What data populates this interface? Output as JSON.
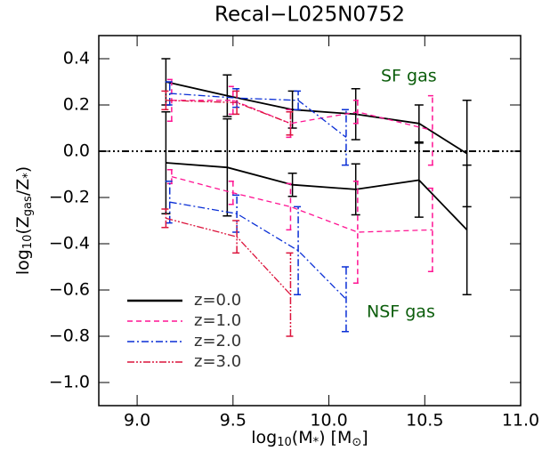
{
  "chart_data": {
    "type": "line",
    "title": "Recal−L025N0752",
    "x_label": [
      "log",
      "10",
      "(M",
      "*",
      ") [M",
      "⊙",
      "]"
    ],
    "y_label": [
      "log",
      "10",
      "(Z",
      "gas",
      "/Z",
      "*",
      ")"
    ],
    "annotations": [
      "SF gas",
      "NSF gas"
    ],
    "xlim": [
      8.8,
      11.0
    ],
    "ylim": [
      -1.1,
      0.5
    ],
    "xticks": [
      {
        "value": 9,
        "label": "9.0"
      },
      9.5,
      {
        "value": 10,
        "label": "10.0"
      },
      10.5,
      {
        "value": 11,
        "label": "11.0"
      }
    ],
    "yticks": [
      {
        "value": -1,
        "label": "−1.0"
      },
      {
        "value": -0.8,
        "label": "−0.8"
      },
      {
        "value": -0.6,
        "label": "−0.6"
      },
      {
        "value": -0.4,
        "label": "−0.4"
      },
      {
        "value": -0.2,
        "label": "−0.2"
      },
      {
        "value": 0,
        "label": "0.0"
      },
      0.2,
      0.4
    ],
    "reference_line": 0,
    "series": [
      {
        "name": "z=0.0",
        "color": "#000000",
        "dash": "none",
        "x": [
          9.15,
          9.47,
          9.81,
          10.14,
          10.47,
          10.72
        ],
        "sf": [
          0.3,
          0.24,
          0.18,
          0.16,
          0.12,
          -0.01
        ],
        "sf_err": [
          0.1,
          0.09,
          0.08,
          0.11,
          0.08,
          0.23
        ],
        "nsf": [
          -0.05,
          -0.07,
          -0.145,
          -0.165,
          -0.125,
          -0.34
        ],
        "nsf_err": [
          0.22,
          0.21,
          0.05,
          0.11,
          0.16,
          0.28
        ]
      },
      {
        "name": "z=1.0",
        "color": "#ff1493",
        "dash": "6,4",
        "x": [
          9.18,
          9.5,
          9.8,
          10.15,
          10.54
        ],
        "sf": [
          0.22,
          0.22,
          0.12,
          0.17,
          0.09
        ],
        "sf_err": [
          0.09,
          0.06,
          0.06,
          0.05,
          0.15
        ],
        "nsf": [
          -0.11,
          -0.18,
          -0.24,
          -0.35,
          -0.34
        ],
        "nsf_err": [
          0.03,
          0.05,
          0.1,
          0.22,
          0.18
        ]
      },
      {
        "name": "z=2.0",
        "color": "#0a2fd6",
        "dash": "8,3,2,3",
        "x": [
          9.17,
          9.52,
          9.84,
          10.09
        ],
        "sf": [
          0.25,
          0.23,
          0.22,
          0.06
        ],
        "sf_err": [
          0.05,
          0.04,
          0.04,
          0.12
        ],
        "nsf": [
          -0.22,
          -0.27,
          -0.43,
          -0.64
        ],
        "nsf_err": [
          0.09,
          0.08,
          0.19,
          0.14
        ]
      },
      {
        "name": "z=3.0",
        "color": "#dc143c",
        "dash": "8,2,2,2,2,2",
        "x": [
          9.15,
          9.52,
          9.8
        ],
        "sf": [
          0.22,
          0.21,
          0.12
        ],
        "sf_err": [
          0.04,
          0.05,
          0.05
        ],
        "nsf": [
          -0.29,
          -0.37,
          -0.62
        ],
        "nsf_err": [
          0.04,
          0.07,
          0.18
        ]
      }
    ]
  }
}
